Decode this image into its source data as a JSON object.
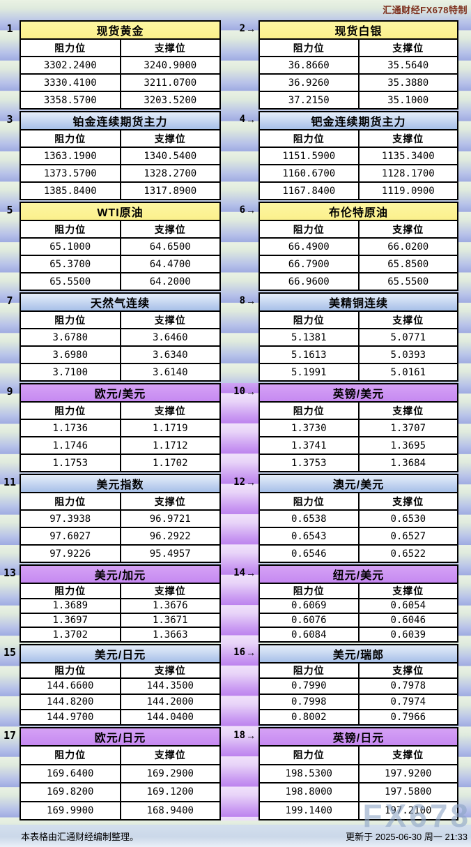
{
  "brand": "汇通财经FX678特制",
  "columns": {
    "resistance": "阻力位",
    "support": "支撑位"
  },
  "icons": {
    "arrow": "→"
  },
  "footer": {
    "note": "本表格由汇通财经编制整理。",
    "updated": "更新于 2025-06-30 周一 21:33"
  },
  "watermark": "FX678",
  "colors": {
    "yellow_header": "#fbf193",
    "blue_header_top": "#e6eefa",
    "blue_header_bottom": "#a7c0e8",
    "purple_header": "#c98ef2",
    "brand_text": "#7c2d1b",
    "stripe_blue": "#a0ace1",
    "stripe_purple": "#bd84ee"
  },
  "instruments": [
    {
      "id": 1,
      "title": "现货黄金",
      "theme": "yellow",
      "rows": [
        [
          "3302.2400",
          "3240.9000"
        ],
        [
          "3330.4100",
          "3211.0700"
        ],
        [
          "3358.5700",
          "3203.5200"
        ]
      ]
    },
    {
      "id": 2,
      "title": "现货白银",
      "theme": "yellow",
      "rows": [
        [
          "36.8660",
          "35.5640"
        ],
        [
          "36.9260",
          "35.3880"
        ],
        [
          "37.2150",
          "35.1000"
        ]
      ]
    },
    {
      "id": 3,
      "title": "铂金连续期货主力",
      "theme": "blue",
      "rows": [
        [
          "1363.1900",
          "1340.5400"
        ],
        [
          "1373.5700",
          "1328.2700"
        ],
        [
          "1385.8400",
          "1317.8900"
        ]
      ]
    },
    {
      "id": 4,
      "title": "钯金连续期货主力",
      "theme": "blue",
      "rows": [
        [
          "1151.5900",
          "1135.3400"
        ],
        [
          "1160.6700",
          "1128.1700"
        ],
        [
          "1167.8400",
          "1119.0900"
        ]
      ]
    },
    {
      "id": 5,
      "title": "WTI原油",
      "theme": "yellow",
      "rows": [
        [
          "65.1000",
          "64.6500"
        ],
        [
          "65.3700",
          "64.4700"
        ],
        [
          "65.5500",
          "64.2000"
        ]
      ]
    },
    {
      "id": 6,
      "title": "布伦特原油",
      "theme": "yellow",
      "rows": [
        [
          "66.4900",
          "66.0200"
        ],
        [
          "66.7900",
          "65.8500"
        ],
        [
          "66.9600",
          "65.5500"
        ]
      ]
    },
    {
      "id": 7,
      "title": "天然气连续",
      "theme": "blue",
      "rows": [
        [
          "3.6780",
          "3.6460"
        ],
        [
          "3.6980",
          "3.6340"
        ],
        [
          "3.7100",
          "3.6140"
        ]
      ]
    },
    {
      "id": 8,
      "title": "美精铜连续",
      "theme": "blue",
      "rows": [
        [
          "5.1381",
          "5.0771"
        ],
        [
          "5.1613",
          "5.0393"
        ],
        [
          "5.1991",
          "5.0161"
        ]
      ]
    },
    {
      "id": 9,
      "title": "欧元/美元",
      "theme": "purple",
      "rows": [
        [
          "1.1736",
          "1.1719"
        ],
        [
          "1.1746",
          "1.1712"
        ],
        [
          "1.1753",
          "1.1702"
        ]
      ]
    },
    {
      "id": 10,
      "title": "英镑/美元",
      "theme": "purple",
      "rows": [
        [
          "1.3730",
          "1.3707"
        ],
        [
          "1.3741",
          "1.3695"
        ],
        [
          "1.3753",
          "1.3684"
        ]
      ]
    },
    {
      "id": 11,
      "title": "美元指数",
      "theme": "blue",
      "rows": [
        [
          "97.3938",
          "96.9721"
        ],
        [
          "97.6027",
          "96.2922"
        ],
        [
          "97.9226",
          "95.4957"
        ]
      ]
    },
    {
      "id": 12,
      "title": "澳元/美元",
      "theme": "blue",
      "rows": [
        [
          "0.6538",
          "0.6530"
        ],
        [
          "0.6543",
          "0.6527"
        ],
        [
          "0.6546",
          "0.6522"
        ]
      ]
    },
    {
      "id": 13,
      "title": "美元/加元",
      "theme": "purple",
      "rows": [
        [
          "1.3689",
          "1.3676"
        ],
        [
          "1.3697",
          "1.3671"
        ],
        [
          "1.3702",
          "1.3663"
        ]
      ]
    },
    {
      "id": 14,
      "title": "纽元/美元",
      "theme": "purple",
      "rows": [
        [
          "0.6069",
          "0.6054"
        ],
        [
          "0.6076",
          "0.6046"
        ],
        [
          "0.6084",
          "0.6039"
        ]
      ]
    },
    {
      "id": 15,
      "title": "美元/日元",
      "theme": "blue",
      "rows": [
        [
          "144.6600",
          "144.3500"
        ],
        [
          "144.8200",
          "144.2000"
        ],
        [
          "144.9700",
          "144.0400"
        ]
      ]
    },
    {
      "id": 16,
      "title": "美元/瑞郎",
      "theme": "blue",
      "rows": [
        [
          "0.7990",
          "0.7978"
        ],
        [
          "0.7998",
          "0.7974"
        ],
        [
          "0.8002",
          "0.7966"
        ]
      ]
    },
    {
      "id": 17,
      "title": "欧元/日元",
      "theme": "purple",
      "rows": [
        [
          "169.6400",
          "169.2900"
        ],
        [
          "169.8200",
          "169.1200"
        ],
        [
          "169.9900",
          "168.9400"
        ]
      ]
    },
    {
      "id": 18,
      "title": "英镑/日元",
      "theme": "purple",
      "rows": [
        [
          "198.5300",
          "197.9200"
        ],
        [
          "198.8000",
          "197.5800"
        ],
        [
          "199.1400",
          "197.2100"
        ]
      ]
    }
  ]
}
